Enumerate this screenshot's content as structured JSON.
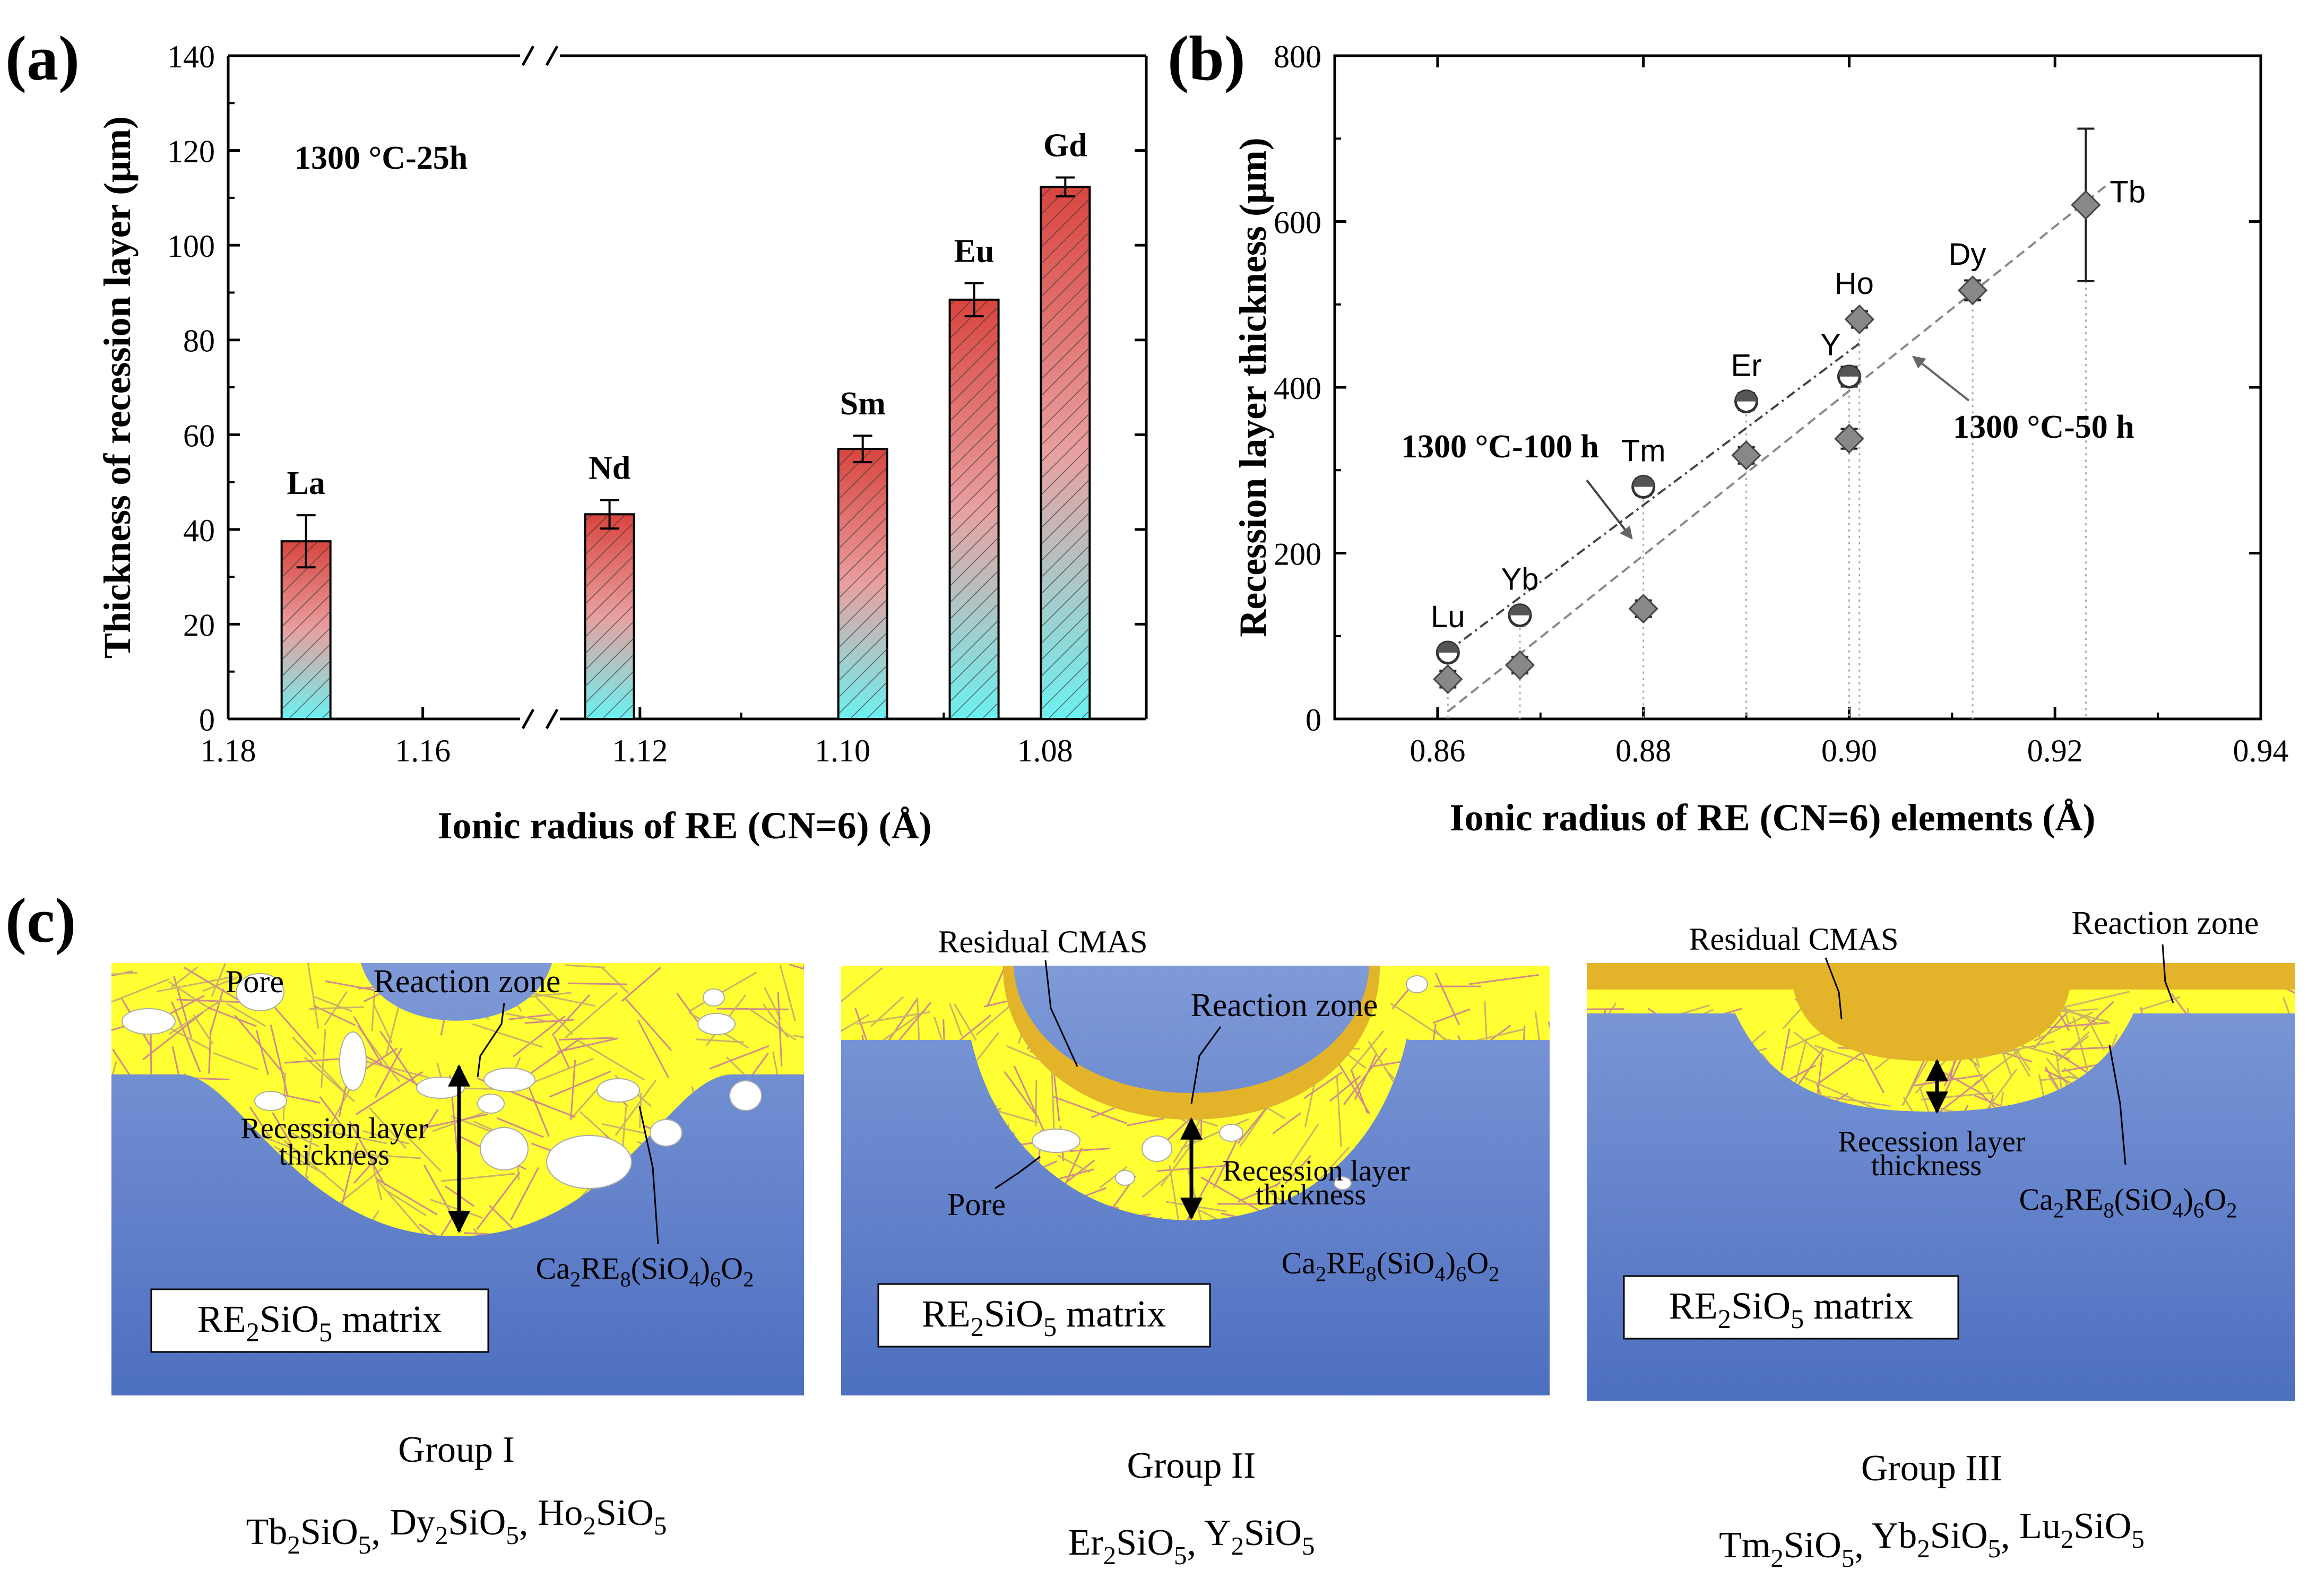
{
  "panel_labels": {
    "a": "(a)",
    "b": "(b)",
    "c": "(c)"
  },
  "chart_data": [
    {
      "id": "a",
      "type": "bar",
      "annotation": "1300 °C-25h",
      "xlabel": "Ionic radius of RE (CN=6) (Å)",
      "ylabel": "Thickness of recession layer (μm)",
      "x_reversed": true,
      "x_broken_axis": true,
      "ylim": [
        0,
        140
      ],
      "yticks": [
        "0",
        "20",
        "40",
        "60",
        "80",
        "100",
        "120",
        "140"
      ],
      "xticks": [
        "1.18",
        "1.16",
        "1.12",
        "1.10",
        "1.08"
      ],
      "categories": [
        "La",
        "Nd",
        "Sm",
        "Eu",
        "Gd"
      ],
      "x": [
        1.172,
        1.123,
        1.098,
        1.087,
        1.078
      ],
      "values": [
        37.5,
        43.2,
        57.0,
        88.5,
        112.3
      ],
      "errors": [
        5.5,
        3.0,
        2.8,
        3.5,
        2.0
      ],
      "bar_color_top": "#d9453f",
      "bar_color_bottom": "#6cf0f0"
    },
    {
      "id": "b",
      "type": "scatter",
      "xlabel": "Ionic radius of RE (CN=6) elements (Å)",
      "ylabel": "Recession layer thickness (μm)",
      "xlim": [
        0.85,
        0.94
      ],
      "ylim": [
        0,
        800
      ],
      "xticks": [
        "0.86",
        "0.88",
        "0.90",
        "0.92",
        "0.94"
      ],
      "yticks": [
        "0",
        "200",
        "400",
        "600",
        "800"
      ],
      "series": [
        {
          "name": "1300 °C-100 h",
          "marker": "circle",
          "points": [
            {
              "label": "Lu",
              "x": 0.861,
              "y": 80,
              "err": 8
            },
            {
              "label": "Yb",
              "x": 0.868,
              "y": 125,
              "err": 8
            },
            {
              "label": "Tm",
              "x": 0.88,
              "y": 280,
              "err": 10
            },
            {
              "label": "Er",
              "x": 0.89,
              "y": 383,
              "err": 10
            },
            {
              "label": "Y",
              "x": 0.9,
              "y": 413,
              "err": 12
            }
          ]
        },
        {
          "name": "1300 °C-50 h",
          "marker": "diamond",
          "points": [
            {
              "label": "",
              "x": 0.861,
              "y": 48,
              "err": 10
            },
            {
              "label": "",
              "x": 0.868,
              "y": 65,
              "err": 10
            },
            {
              "label": "",
              "x": 0.88,
              "y": 133,
              "err": 10
            },
            {
              "label": "",
              "x": 0.89,
              "y": 318,
              "err": 10
            },
            {
              "label": "",
              "x": 0.9,
              "y": 338,
              "err": 12
            },
            {
              "label": "Ho",
              "x": 0.901,
              "y": 482,
              "err": 10
            },
            {
              "label": "Dy",
              "x": 0.912,
              "y": 517,
              "err": 12
            },
            {
              "label": "Tb",
              "x": 0.923,
              "y": 620,
              "err": 92
            }
          ]
        }
      ]
    }
  ],
  "diagram": {
    "colors": {
      "matrix_top": "#7f9ad8",
      "matrix_bottom": "#4d6fc0",
      "reaction": "#ffff33",
      "cmas": "#e3b32a",
      "fiber": "#d08a8a"
    },
    "panels": [
      {
        "id": "g1",
        "labels": {
          "pore": "Pore",
          "reaction": "Reaction zone",
          "recession": "Recession layer",
          "thickness": "thickness",
          "apatite": "Ca2RE8(SiO4)6O2",
          "matrix": "RE2SiO5 matrix"
        },
        "group": "Group I",
        "formulas": [
          [
            "Tb",
            "2",
            "SiO",
            "5"
          ],
          [
            "Dy",
            "2",
            "SiO",
            "5"
          ],
          [
            "Ho",
            "2",
            "SiO",
            "5"
          ]
        ]
      },
      {
        "id": "g2",
        "labels": {
          "cmas": "Residual CMAS",
          "reaction": "Reaction zone",
          "pore": "Pore",
          "recession": "Recession layer",
          "thickness": "thickness",
          "apatite": "Ca2RE8(SiO4)6O2",
          "matrix": "RE2SiO5 matrix"
        },
        "group": "Group II",
        "formulas": [
          [
            "Er",
            "2",
            "SiO",
            "5"
          ],
          [
            "Y",
            "2",
            "SiO",
            "5"
          ]
        ]
      },
      {
        "id": "g3",
        "labels": {
          "cmas": "Residual CMAS",
          "reaction": "Reaction zone",
          "recession": "Recession layer",
          "thickness": "thickness",
          "apatite": "Ca2RE8(SiO4)6O2",
          "matrix": "RE2SiO5 matrix"
        },
        "group": "Group III",
        "formulas": [
          [
            "Tm",
            "2",
            "SiO",
            "5"
          ],
          [
            "Yb",
            "2",
            "SiO",
            "5"
          ],
          [
            "Lu",
            "2",
            "SiO",
            "5"
          ]
        ]
      }
    ]
  }
}
